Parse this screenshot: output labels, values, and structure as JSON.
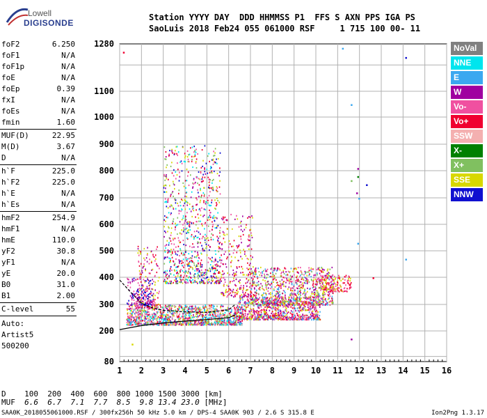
{
  "logo": {
    "line1": "Lowell",
    "line2": "DIGISONDE"
  },
  "header": {
    "line1": "Station YYYY DAY  DDD HHMMSS P1  FFS S AXN PPS IGA PS",
    "line2": "SaoLuis 2018 Feb24 055 061000 RSF     1 715 100 00- 11"
  },
  "params_group1": [
    {
      "name": "foF2",
      "value": "6.250"
    },
    {
      "name": "foF1",
      "value": "N/A"
    },
    {
      "name": "foF1p",
      "value": "N/A"
    },
    {
      "name": "foE",
      "value": "N/A"
    },
    {
      "name": "foEp",
      "value": "0.39"
    },
    {
      "name": "fxI",
      "value": "N/A"
    },
    {
      "name": "foEs",
      "value": "N/A"
    },
    {
      "name": "fmin",
      "value": "1.60"
    }
  ],
  "params_group2": [
    {
      "name": "MUF(D)",
      "value": "22.95"
    },
    {
      "name": "M(D)",
      "value": "3.67"
    },
    {
      "name": "D",
      "value": "N/A"
    }
  ],
  "params_group3": [
    {
      "name": "h`F",
      "value": "225.0"
    },
    {
      "name": "h`F2",
      "value": "225.0"
    },
    {
      "name": "h`E",
      "value": "N/A"
    },
    {
      "name": "h`Es",
      "value": "N/A"
    }
  ],
  "params_group4": [
    {
      "name": "hmF2",
      "value": "254.9"
    },
    {
      "name": "hmF1",
      "value": "N/A"
    },
    {
      "name": "hmE",
      "value": "110.0"
    },
    {
      "name": "yF2",
      "value": "30.8"
    },
    {
      "name": "yF1",
      "value": "N/A"
    },
    {
      "name": "yE",
      "value": "20.0"
    },
    {
      "name": "B0",
      "value": "31.0"
    },
    {
      "name": "B1",
      "value": "2.00"
    }
  ],
  "params_group5": [
    {
      "name": "C-level",
      "value": "55"
    }
  ],
  "params_text": [
    "Auto:",
    "Artist5",
    "500200"
  ],
  "legend": [
    {
      "label": "NoVal",
      "color": "#808080"
    },
    {
      "label": "NNE",
      "color": "#00e5ee"
    },
    {
      "label": "E",
      "color": "#3ba8f0"
    },
    {
      "label": "W",
      "color": "#a000a0"
    },
    {
      "label": "Vo-",
      "color": "#f050a0"
    },
    {
      "label": "Vo+",
      "color": "#f00030"
    },
    {
      "label": "SSW",
      "color": "#f4b0b0"
    },
    {
      "label": "X-",
      "color": "#008000"
    },
    {
      "label": "X+",
      "color": "#80c060"
    },
    {
      "label": "SSE",
      "color": "#d8d800"
    },
    {
      "label": "NNW",
      "color": "#1010d0"
    }
  ],
  "footer": {
    "d_row": "D    100  200  400  600  800 1000 1500 3000 [km]",
    "muf_label": "MUF ",
    "muf_values": " 6.6  6.7  7.1  7.7  8.5  9.8 13.4 23.0",
    "muf_unit": " [MHz]",
    "source": "SAA0K_2018055061000.RSF / 300fx256h 50 kHz 5.0 km / DPS-4 SAA0K 903 / 2.6 S 315.8 E",
    "version": "Ion2Png 1.3.17"
  },
  "chart_data": {
    "type": "scatter",
    "x_ticks": [
      "1",
      "2",
      "3",
      "4",
      "5",
      "6",
      "7",
      "8",
      "9",
      "10",
      "11",
      "12",
      "13",
      "14",
      "15",
      "16"
    ],
    "y_ticks": [
      "80",
      "200",
      "300",
      "400",
      "500",
      "600",
      "700",
      "800",
      "900",
      "1000",
      "1100",
      "1280"
    ],
    "xlim": [
      1,
      16
    ],
    "y_scale": "custom-log (virtual height, km)",
    "grid": true,
    "legend_position": "right",
    "seed": 13,
    "clusters": [
      {
        "x": [
          1.3,
          6.6
        ],
        "y": [
          225,
          300
        ],
        "n": 1400,
        "colors": [
          "#f00030",
          "#f050a0",
          "#a000a0",
          "#d8d800",
          "#00e5ee",
          "#3ba8f0",
          "#80c060",
          "#f4b0b0"
        ]
      },
      {
        "x": [
          6.4,
          10.2
        ],
        "y": [
          245,
          330
        ],
        "n": 800,
        "colors": [
          "#f00030",
          "#f050a0",
          "#a000a0",
          "#d8d800",
          "#3ba8f0"
        ]
      },
      {
        "x": [
          7.0,
          10.8
        ],
        "y": [
          300,
          440
        ],
        "n": 900,
        "colors": [
          "#d8d800",
          "#f050a0",
          "#a000a0",
          "#f00030",
          "#80c060",
          "#3ba8f0"
        ]
      },
      {
        "x": [
          10.2,
          11.6
        ],
        "y": [
          350,
          410
        ],
        "n": 150,
        "colors": [
          "#f050a0",
          "#f00030",
          "#d8d800"
        ]
      },
      {
        "x": [
          3.0,
          5.6
        ],
        "y": [
          380,
          900
        ],
        "n": 950,
        "colors": [
          "#d8d800",
          "#a000a0",
          "#f050a0",
          "#f00030",
          "#1010d0",
          "#80c060",
          "#00e5ee"
        ]
      },
      {
        "x": [
          1.8,
          2.8
        ],
        "y": [
          290,
          520
        ],
        "n": 160,
        "colors": [
          "#f00030",
          "#a000a0",
          "#f050a0",
          "#d8d800"
        ]
      },
      {
        "x": [
          5.6,
          7.1
        ],
        "y": [
          330,
          640
        ],
        "n": 260,
        "colors": [
          "#d8d800",
          "#a000a0",
          "#f050a0",
          "#f00030"
        ]
      },
      {
        "x": [
          1.3,
          2.6
        ],
        "y": [
          300,
          400
        ],
        "n": 160,
        "colors": [
          "#a000a0",
          "#1010d0",
          "#f050a0"
        ]
      }
    ],
    "isolated_points": [
      {
        "x": 11.9,
        "y": 810,
        "c": "#a000a0"
      },
      {
        "x": 11.9,
        "y": 780,
        "c": "#008000"
      },
      {
        "x": 11.6,
        "y": 765,
        "c": "#80c060"
      },
      {
        "x": 11.95,
        "y": 700,
        "c": "#3ba8f0"
      },
      {
        "x": 11.85,
        "y": 720,
        "c": "#a000a0"
      },
      {
        "x": 12.3,
        "y": 750,
        "c": "#1010d0"
      },
      {
        "x": 14.1,
        "y": 1230,
        "c": "#1010d0"
      },
      {
        "x": 11.2,
        "y": 1265,
        "c": "#3ba8f0"
      },
      {
        "x": 11.6,
        "y": 1050,
        "c": "#3ba8f0"
      },
      {
        "x": 11.9,
        "y": 530,
        "c": "#3ba8f0"
      },
      {
        "x": 14.1,
        "y": 470,
        "c": "#3ba8f0"
      },
      {
        "x": 12.6,
        "y": 400,
        "c": "#f00030"
      },
      {
        "x": 11.6,
        "y": 170,
        "c": "#a000a0"
      },
      {
        "x": 1.15,
        "y": 1250,
        "c": "#f00030"
      },
      {
        "x": 1.55,
        "y": 150,
        "c": "#d8d800"
      }
    ],
    "trace_lower": {
      "x": [
        1.0,
        2.0,
        3.0,
        4.0,
        5.0,
        6.0,
        6.3
      ],
      "y": [
        205,
        220,
        230,
        237,
        243,
        250,
        260
      ]
    },
    "trace_upper": {
      "x": [
        1.0,
        1.5,
        2.0,
        2.5,
        3.0,
        4.0,
        5.0,
        6.0,
        6.3
      ],
      "y": [
        390,
        345,
        305,
        287,
        278,
        272,
        270,
        280,
        300
      ]
    }
  }
}
